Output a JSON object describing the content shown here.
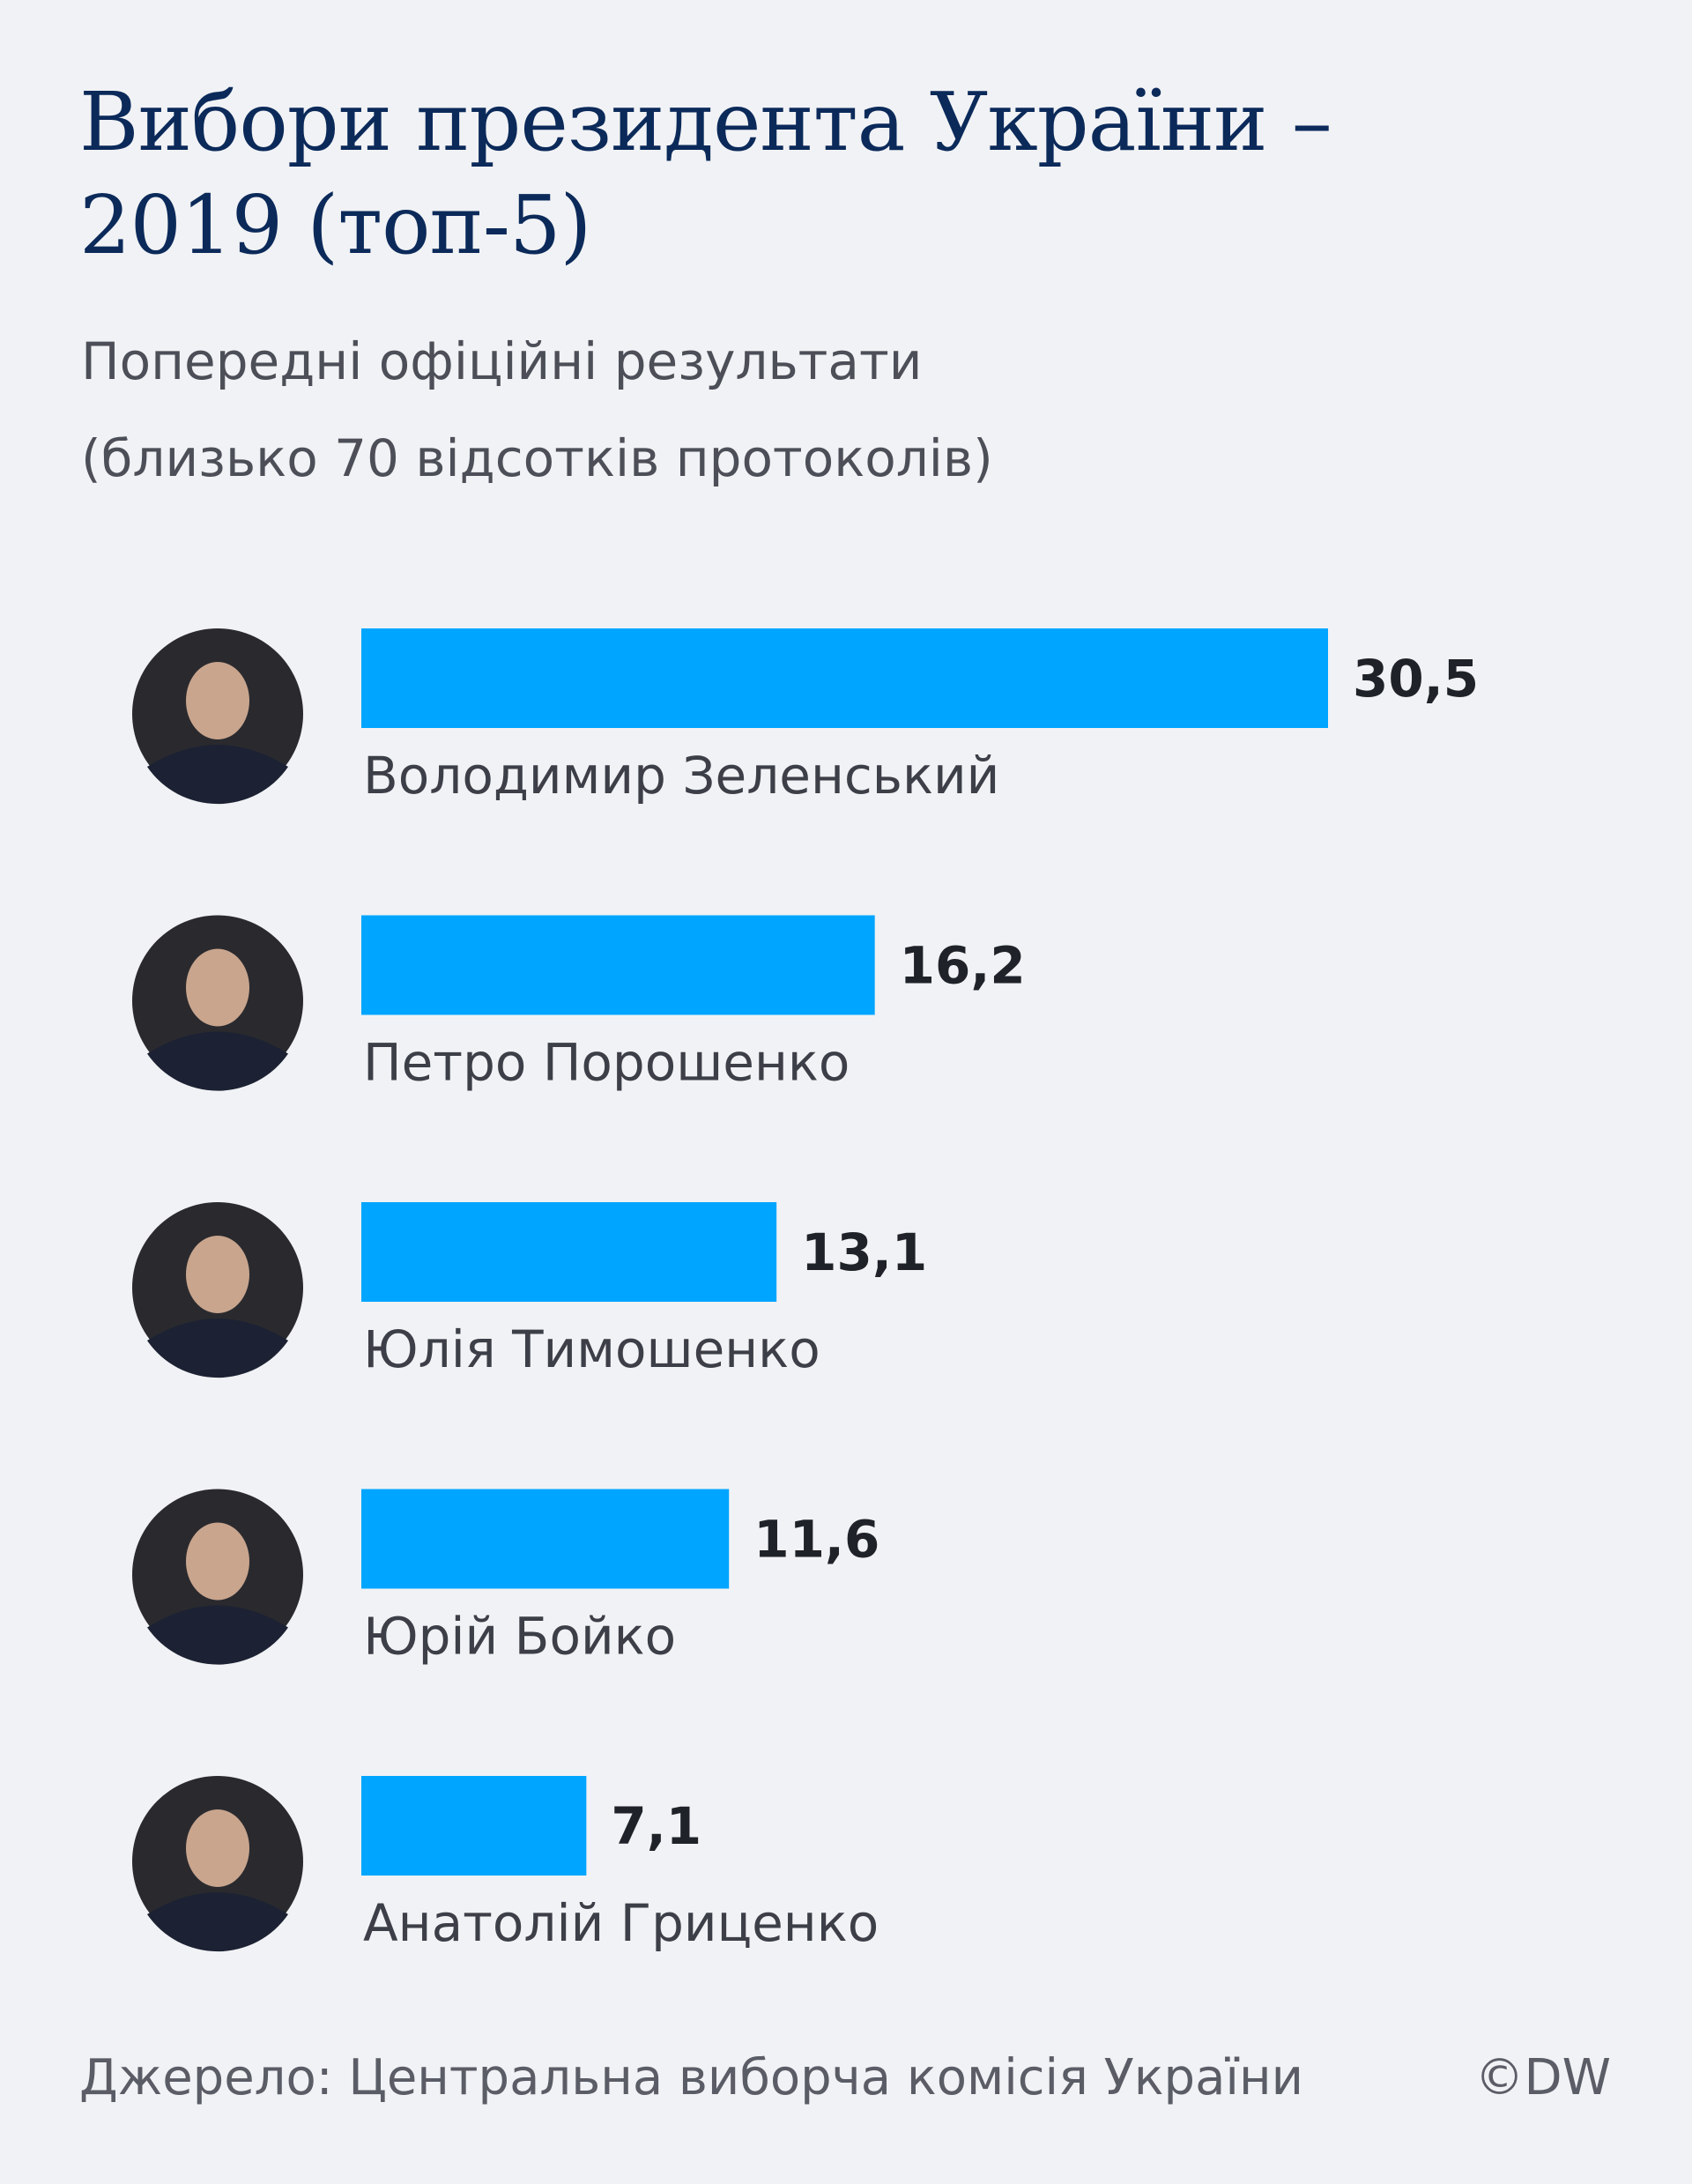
{
  "header": {
    "title": "Вибори президента України – 2019 (топ-5)",
    "subtitle_line1": "Попередні офіційні результати",
    "subtitle_line2": "(близько 70 відсотків протоколів)"
  },
  "chart_data": {
    "type": "bar",
    "orientation": "horizontal",
    "title": "Вибори президента України – 2019 (топ-5)",
    "subtitle": "Попередні офіційні результати (близько 70 відсотків протоколів)",
    "categories": [
      "Володимир Зеленський",
      "Петро Порошенко",
      "Юлія Тимошенко",
      "Юрій Бойко",
      "Анатолій Гриценко"
    ],
    "values": [
      30.5,
      16.2,
      13.1,
      11.6,
      7.1
    ],
    "value_labels": [
      "30,5",
      "16,2",
      "13,1",
      "11,6",
      "7,1"
    ],
    "xlim": [
      0,
      30.5
    ],
    "grid": false,
    "bar_color": "#00a5ff"
  },
  "footer": {
    "source": "Джерело: Центральна виборча комісія України",
    "credit": "©DW"
  },
  "colors": {
    "background": "#f1f2f5",
    "title": "#0b2a5a",
    "bar": "#00a5ff"
  }
}
